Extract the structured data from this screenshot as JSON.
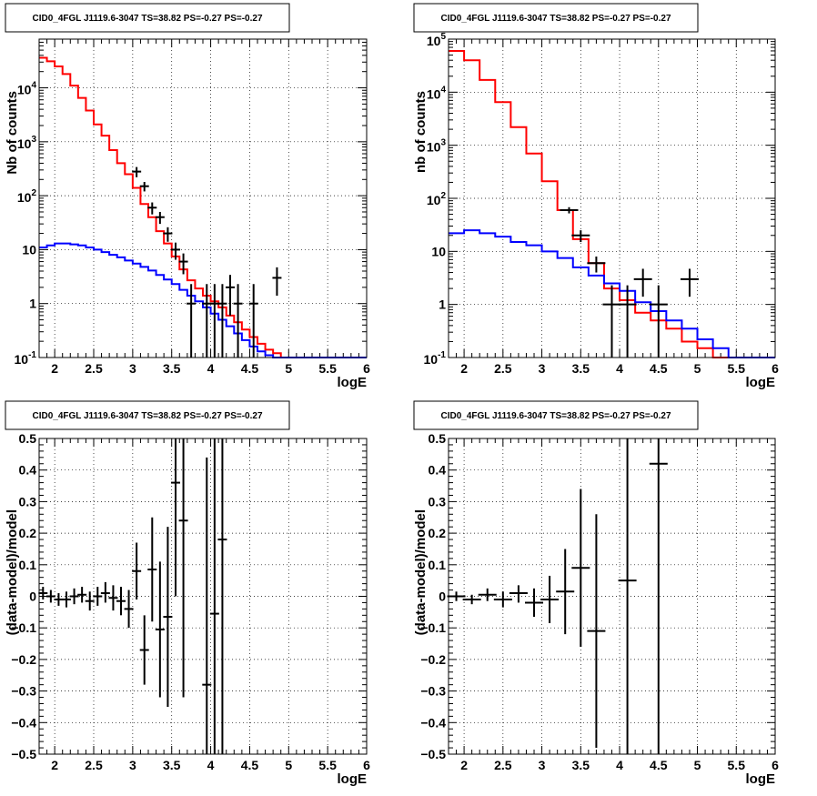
{
  "chart_data": [
    {
      "type": "line",
      "title": "CID0_4FGL J1119.6-3047 TS=38.82 PS=-0.27 PS=-0.27",
      "xlabel": "logE",
      "ylabel": "Nb of counts",
      "xlim": [
        1.8,
        6.0
      ],
      "ylim": [
        0.1,
        80000
      ],
      "yscale": "log",
      "grid": true,
      "x_ticks": [
        "2",
        "2.5",
        "3",
        "3.5",
        "4",
        "4.5",
        "5",
        "5.5",
        "6"
      ],
      "y_ticks": [
        "10^-1",
        "1",
        "10",
        "10^2",
        "10^3",
        "10^4"
      ],
      "series": [
        {
          "kind": "hist",
          "color": "#ff0000",
          "x": [
            1.8,
            1.9,
            2.0,
            2.1,
            2.2,
            2.3,
            2.4,
            2.5,
            2.6,
            2.7,
            2.8,
            2.9,
            3.0,
            3.1,
            3.2,
            3.3,
            3.4,
            3.5,
            3.6,
            3.7,
            3.8,
            3.9,
            4.0,
            4.1,
            4.2,
            4.3,
            4.4,
            4.5,
            4.6,
            4.7,
            4.8,
            4.9,
            5.0,
            5.1,
            5.2,
            5.3,
            5.4,
            5.5,
            5.6,
            5.7,
            5.8,
            5.9,
            6.0
          ],
          "values": [
            36000,
            31000,
            25000,
            18000,
            11000,
            6500,
            3800,
            2100,
            1300,
            700,
            400,
            250,
            140,
            70,
            40,
            22,
            13,
            7.5,
            4.3,
            2.7,
            1.9,
            1.4,
            1.1,
            0.85,
            0.6,
            0.45,
            0.33,
            0.24,
            0.18,
            0.14,
            0.12,
            0.1,
            0.1,
            0.1,
            0.1,
            0.1,
            0.1,
            0.1,
            0.1,
            0.1,
            0.1,
            0.1
          ]
        },
        {
          "kind": "hist",
          "color": "#0000ff",
          "x": [
            1.8,
            1.9,
            2.0,
            2.1,
            2.2,
            2.3,
            2.4,
            2.5,
            2.6,
            2.7,
            2.8,
            2.9,
            3.0,
            3.1,
            3.2,
            3.3,
            3.4,
            3.5,
            3.6,
            3.7,
            3.8,
            3.9,
            4.0,
            4.1,
            4.2,
            4.3,
            4.4,
            4.5,
            4.6,
            4.7,
            4.8,
            4.9,
            5.0,
            5.1,
            5.2,
            5.3,
            5.4,
            5.5,
            5.6,
            5.7,
            5.8,
            5.9,
            6.0
          ],
          "values": [
            11,
            12,
            13,
            13,
            12.5,
            12,
            11,
            10,
            9,
            8,
            7.2,
            6.3,
            5.5,
            4.8,
            4.1,
            3.4,
            2.8,
            2.3,
            1.8,
            1.4,
            1.1,
            0.85,
            0.65,
            0.5,
            0.38,
            0.28,
            0.21,
            0.16,
            0.13,
            0.11,
            0.1,
            0.1,
            0.1,
            0.1,
            0.1,
            0.1,
            0.1,
            0.1,
            0.1,
            0.1,
            0.1,
            0.1
          ]
        },
        {
          "kind": "points",
          "color": "#000000",
          "points": [
            {
              "x": 3.05,
              "y": 280,
              "lo": 220,
              "hi": 340
            },
            {
              "x": 3.15,
              "y": 150,
              "lo": 120,
              "hi": 180
            },
            {
              "x": 3.25,
              "y": 60,
              "lo": 45,
              "hi": 75
            },
            {
              "x": 3.35,
              "y": 40,
              "lo": 30,
              "hi": 50
            },
            {
              "x": 3.45,
              "y": 20,
              "lo": 14,
              "hi": 26
            },
            {
              "x": 3.55,
              "y": 10,
              "lo": 6.5,
              "hi": 13.5
            },
            {
              "x": 3.65,
              "y": 6,
              "lo": 3.5,
              "hi": 8.5
            },
            {
              "x": 3.75,
              "y": 1,
              "lo": 0.1,
              "hi": 2.3
            },
            {
              "x": 3.95,
              "y": 1,
              "lo": 0.1,
              "hi": 2.3
            },
            {
              "x": 4.05,
              "y": 1,
              "lo": 0.1,
              "hi": 2.3
            },
            {
              "x": 4.15,
              "y": 1,
              "lo": 0.1,
              "hi": 2.3
            },
            {
              "x": 4.25,
              "y": 2,
              "lo": 0.6,
              "hi": 3.4
            },
            {
              "x": 4.35,
              "y": 1,
              "lo": 0.1,
              "hi": 2.3
            },
            {
              "x": 4.55,
              "y": 1,
              "lo": 0.1,
              "hi": 2.3
            },
            {
              "x": 4.85,
              "y": 3,
              "lo": 1.4,
              "hi": 4.7
            }
          ]
        }
      ]
    },
    {
      "type": "line",
      "title": "CID0_4FGL J1119.6-3047 TS=38.82 PS=-0.27 PS=-0.27",
      "xlabel": "logE",
      "ylabel": "nb of counts",
      "xlim": [
        1.8,
        6.0
      ],
      "ylim": [
        0.1,
        100000
      ],
      "yscale": "log",
      "grid": true,
      "x_ticks": [
        "2",
        "2.5",
        "3",
        "3.5",
        "4",
        "4.5",
        "5",
        "5.5",
        "6"
      ],
      "y_ticks": [
        "10^-1",
        "1",
        "10",
        "10^2",
        "10^3",
        "10^4",
        "10^5"
      ],
      "series": [
        {
          "kind": "hist",
          "color": "#ff0000",
          "x": [
            1.8,
            2.0,
            2.2,
            2.4,
            2.6,
            2.8,
            3.0,
            3.2,
            3.4,
            3.6,
            3.8,
            4.0,
            4.2,
            4.4,
            4.6,
            4.8,
            5.0,
            5.2,
            5.4,
            5.6,
            5.8,
            6.0
          ],
          "values": [
            60000,
            40000,
            17000,
            6500,
            2200,
            700,
            210,
            60,
            17,
            6,
            2,
            1.2,
            0.7,
            0.5,
            0.35,
            0.2,
            0.15,
            0.1,
            0.1,
            0.1,
            0.1
          ]
        },
        {
          "kind": "hist",
          "color": "#0000ff",
          "x": [
            1.8,
            2.0,
            2.2,
            2.4,
            2.6,
            2.8,
            3.0,
            3.2,
            3.4,
            3.6,
            3.8,
            4.0,
            4.2,
            4.4,
            4.6,
            4.8,
            5.0,
            5.2,
            5.4,
            5.6,
            5.8,
            6.0
          ],
          "values": [
            22,
            25,
            22,
            19,
            15,
            13,
            10,
            7.5,
            5,
            3.5,
            2.5,
            1.8,
            1.1,
            0.75,
            0.5,
            0.35,
            0.22,
            0.15,
            0.1,
            0.1,
            0.1
          ]
        },
        {
          "kind": "points",
          "color": "#000000",
          "points": [
            {
              "x": 3.35,
              "y": 60,
              "lo": 52,
              "hi": 68
            },
            {
              "x": 3.5,
              "y": 20,
              "lo": 15,
              "hi": 25
            },
            {
              "x": 3.7,
              "y": 6,
              "lo": 4,
              "hi": 8
            },
            {
              "x": 3.9,
              "y": 1,
              "lo": 0.1,
              "hi": 2.3
            },
            {
              "x": 4.1,
              "y": 1,
              "lo": 0.1,
              "hi": 2.3
            },
            {
              "x": 4.3,
              "y": 3,
              "lo": 1.4,
              "hi": 4.7
            },
            {
              "x": 4.5,
              "y": 1,
              "lo": 0.1,
              "hi": 2.3
            },
            {
              "x": 4.9,
              "y": 3,
              "lo": 1.4,
              "hi": 4.7
            }
          ]
        }
      ]
    },
    {
      "type": "scatter",
      "title": "CID0_4FGL J1119.6-3047 TS=38.82 PS=-0.27 PS=-0.27",
      "xlabel": "logE",
      "ylabel": "(data-model)/model",
      "xlim": [
        1.8,
        6.0
      ],
      "ylim": [
        -0.5,
        0.5
      ],
      "grid": true,
      "x_ticks": [
        "2",
        "2.5",
        "3",
        "3.5",
        "4",
        "4.5",
        "5",
        "5.5",
        "6"
      ],
      "y_ticks": [
        "−0.5",
        "−0.4",
        "−0.3",
        "−0.2",
        "−0.1",
        "0",
        "0.1",
        "0.2",
        "0.3",
        "0.4",
        "0.5"
      ],
      "series": [
        {
          "kind": "points",
          "color": "#000000",
          "points": [
            {
              "x": 1.85,
              "y": 0.01,
              "lo": -0.01,
              "hi": 0.03
            },
            {
              "x": 1.95,
              "y": 0.0,
              "lo": -0.02,
              "hi": 0.02
            },
            {
              "x": 2.05,
              "y": -0.01,
              "lo": -0.03,
              "hi": 0.01
            },
            {
              "x": 2.15,
              "y": -0.01,
              "lo": -0.035,
              "hi": 0.015
            },
            {
              "x": 2.25,
              "y": 0.0,
              "lo": -0.025,
              "hi": 0.025
            },
            {
              "x": 2.35,
              "y": 0.005,
              "lo": -0.02,
              "hi": 0.03
            },
            {
              "x": 2.45,
              "y": -0.015,
              "lo": -0.045,
              "hi": 0.015
            },
            {
              "x": 2.55,
              "y": 0.0,
              "lo": -0.03,
              "hi": 0.03
            },
            {
              "x": 2.65,
              "y": 0.01,
              "lo": -0.02,
              "hi": 0.045
            },
            {
              "x": 2.75,
              "y": -0.005,
              "lo": -0.045,
              "hi": 0.035
            },
            {
              "x": 2.85,
              "y": -0.015,
              "lo": -0.06,
              "hi": 0.03
            },
            {
              "x": 2.95,
              "y": -0.04,
              "lo": -0.1,
              "hi": 0.02
            },
            {
              "x": 3.05,
              "y": 0.08,
              "lo": -0.01,
              "hi": 0.17
            },
            {
              "x": 3.15,
              "y": -0.17,
              "lo": -0.28,
              "hi": -0.06
            },
            {
              "x": 3.25,
              "y": 0.085,
              "lo": -0.08,
              "hi": 0.25
            },
            {
              "x": 3.35,
              "y": -0.105,
              "lo": -0.32,
              "hi": 0.11
            },
            {
              "x": 3.45,
              "y": -0.065,
              "lo": -0.35,
              "hi": 0.22
            },
            {
              "x": 3.55,
              "y": 0.36,
              "lo": 0.0,
              "hi": 0.5
            },
            {
              "x": 3.65,
              "y": 0.24,
              "lo": -0.32,
              "hi": 0.5
            },
            {
              "x": 3.95,
              "y": -0.28,
              "lo": -0.5,
              "hi": 0.44
            },
            {
              "x": 4.05,
              "y": -0.055,
              "lo": -0.5,
              "hi": 0.5
            },
            {
              "x": 4.15,
              "y": 0.18,
              "lo": -0.5,
              "hi": 0.5
            }
          ]
        }
      ]
    },
    {
      "type": "scatter",
      "title": "CID0_4FGL J1119.6-3047 TS=38.82 PS=-0.27 PS=-0.27",
      "xlabel": "logE",
      "ylabel": "(data-model)/model",
      "xlim": [
        1.8,
        6.0
      ],
      "ylim": [
        -0.5,
        0.5
      ],
      "grid": true,
      "x_ticks": [
        "2",
        "2.5",
        "3",
        "3.5",
        "4",
        "4.5",
        "5",
        "5.5",
        "6"
      ],
      "y_ticks": [
        "−0.5",
        "−0.4",
        "−0.3",
        "−0.2",
        "−0.1",
        "0",
        "0.1",
        "0.2",
        "0.3",
        "0.4",
        "0.5"
      ],
      "series": [
        {
          "kind": "points",
          "color": "#000000",
          "points": [
            {
              "x": 1.9,
              "y": 0.0,
              "lo": -0.015,
              "hi": 0.015
            },
            {
              "x": 2.1,
              "y": -0.01,
              "lo": -0.025,
              "hi": 0.005
            },
            {
              "x": 2.3,
              "y": 0.005,
              "lo": -0.015,
              "hi": 0.025
            },
            {
              "x": 2.5,
              "y": -0.01,
              "lo": -0.035,
              "hi": 0.015
            },
            {
              "x": 2.7,
              "y": 0.01,
              "lo": -0.02,
              "hi": 0.035
            },
            {
              "x": 2.9,
              "y": -0.02,
              "lo": -0.065,
              "hi": 0.025
            },
            {
              "x": 3.1,
              "y": -0.01,
              "lo": -0.085,
              "hi": 0.065
            },
            {
              "x": 3.3,
              "y": 0.015,
              "lo": -0.12,
              "hi": 0.15
            },
            {
              "x": 3.5,
              "y": 0.09,
              "lo": -0.16,
              "hi": 0.34
            },
            {
              "x": 3.7,
              "y": -0.11,
              "lo": -0.48,
              "hi": 0.26
            },
            {
              "x": 4.1,
              "y": 0.05,
              "lo": -0.5,
              "hi": 0.5
            },
            {
              "x": 4.5,
              "y": 0.42,
              "lo": -0.5,
              "hi": 0.5
            }
          ]
        }
      ]
    }
  ]
}
